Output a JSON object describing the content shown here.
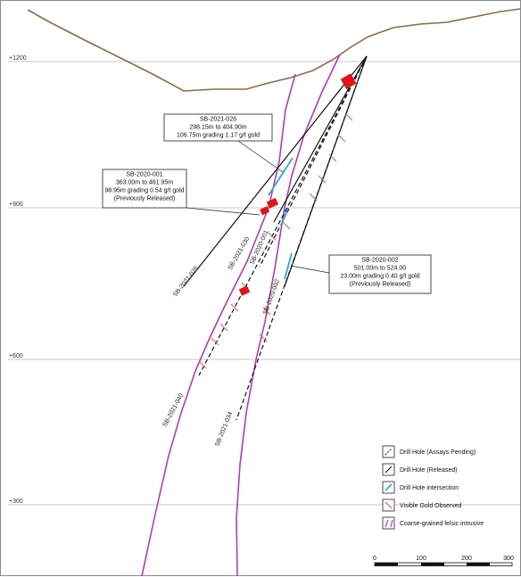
{
  "elevations": [
    "+1200",
    "+900",
    "+600",
    "+300"
  ],
  "drill_holes": {
    "h026": "SB-2021-026",
    "h030": "SB-2021-030",
    "h001": "SB-2020-001",
    "h002": "SB-2020-002",
    "h040": "SB-2021-040",
    "h034": "SB-2021-034"
  },
  "callouts": {
    "c026": {
      "title": "SB-2021-026",
      "line1": "298.15m to 404.90m",
      "line2": "106.75m grading 1.17 g/t gold"
    },
    "c001": {
      "title": "SB-2020-001",
      "line1": "363.00m to 461.95m",
      "line2": "98.95m grading 0.54 g/t gold",
      "line3": "(Previously Released)"
    },
    "c002": {
      "title": "SB-2020-002",
      "line1": "501.00m to 524.00",
      "line2": "23.00m grading 0.40 g/t gold",
      "line3": "(Previously Released)"
    }
  },
  "legend": {
    "items": [
      {
        "label": "Drill Hole (Assays Pending)",
        "icon": "dashed-drill-hole-icon"
      },
      {
        "label": "Drill Hole (Released)",
        "icon": "solid-drill-hole-icon"
      },
      {
        "label": "Drill Hole intersection",
        "icon": "intersection-icon",
        "color": "#29a9d6"
      },
      {
        "label": "Visible Gold Observed",
        "icon": "visible-gold-icon",
        "color": "#d0604a"
      },
      {
        "label": "Coarse-grained felsic intrusive",
        "icon": "intrusive-icon",
        "color": "#b43bb0"
      }
    ]
  },
  "scale": {
    "labels": [
      "0",
      "100",
      "200",
      "300"
    ]
  },
  "colors": {
    "topography": "#8b6a47",
    "intrusive": "#b43bb0",
    "intersection": "#29a9d6",
    "visible_gold": "#d0604a",
    "drill_pad": "#e0141b",
    "grid": "#b8b8b8"
  }
}
